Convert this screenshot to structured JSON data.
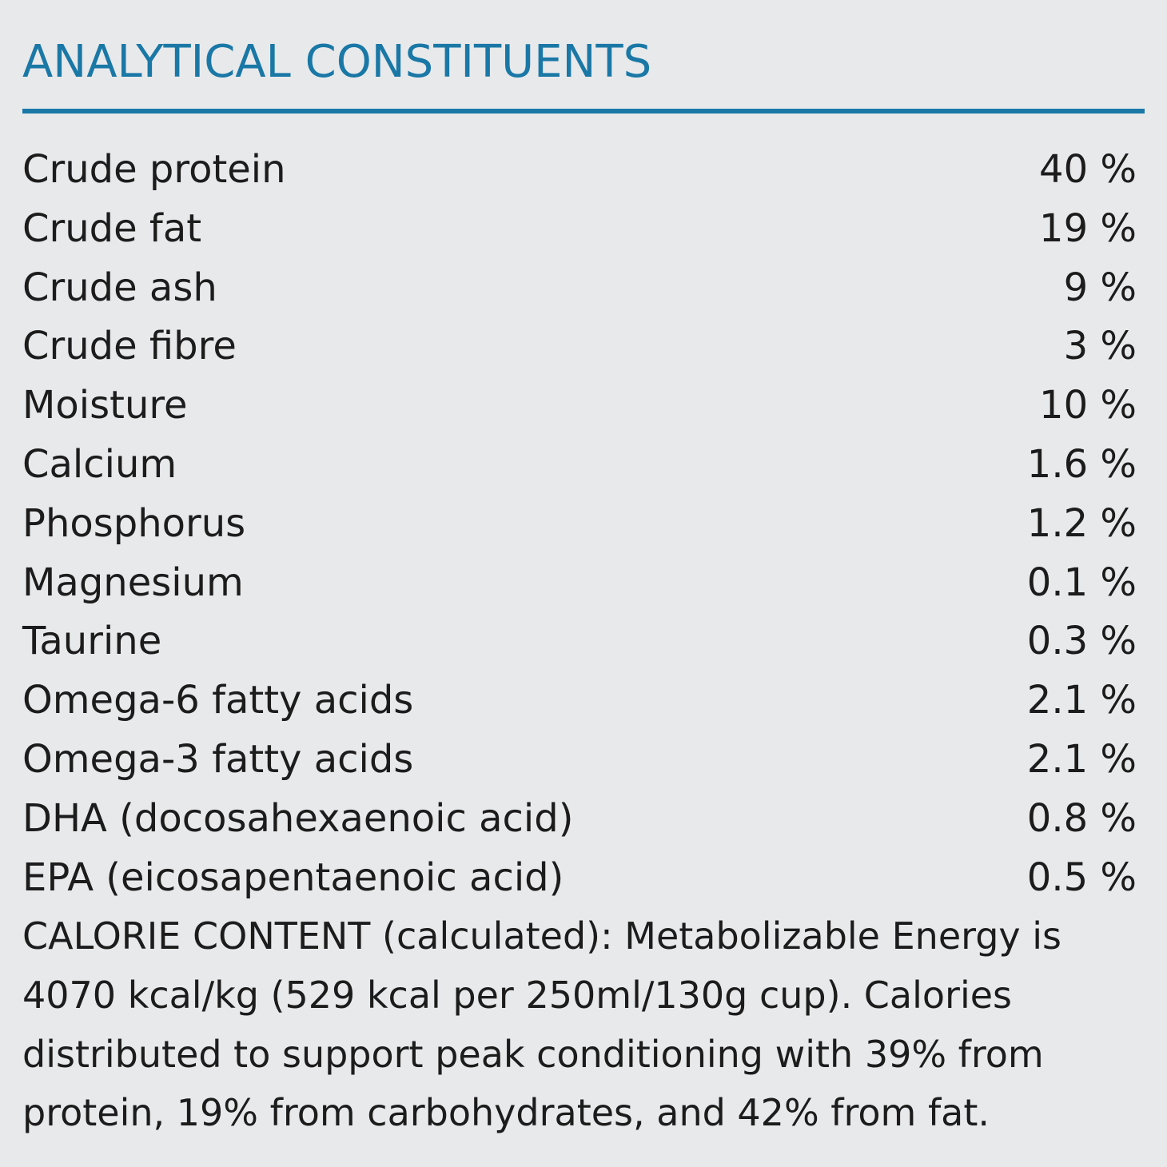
{
  "heading": "ANALYTICAL CONSTITUENTS",
  "constituents": [
    {
      "label": "Crude protein",
      "value": "40 %"
    },
    {
      "label": "Crude fat",
      "value": "19 %"
    },
    {
      "label": "Crude ash",
      "value": "9 %"
    },
    {
      "label": "Crude fibre",
      "value": "3 %"
    },
    {
      "label": "Moisture",
      "value": "10 %"
    },
    {
      "label": "Calcium",
      "value": "1.6 %"
    },
    {
      "label": "Phosphorus",
      "value": "1.2 %"
    },
    {
      "label": "Magnesium",
      "value": "0.1 %"
    },
    {
      "label": "Taurine",
      "value": "0.3 %"
    },
    {
      "label": "Omega-6 fatty acids",
      "value": "2.1 %"
    },
    {
      "label": "Omega-3 fatty acids",
      "value": "2.1 %"
    },
    {
      "label": "DHA (docosahexaenoic acid)",
      "value": "0.8 %"
    },
    {
      "label": "EPA (eicosapentaenoic acid)",
      "value": "0.5 %"
    }
  ],
  "calorie_content": "CALORIE CONTENT (calculated): Metabolizable Energy is 4070 kcal/kg (529 kcal per 250ml/130g cup). Calories distributed to support peak conditioning with 39% from protein, 19% from carbohydrates, and 42% from fat.",
  "colors": {
    "background": "#e8e9eb",
    "accent": "#1a78a6",
    "text": "#1c1c1c"
  }
}
